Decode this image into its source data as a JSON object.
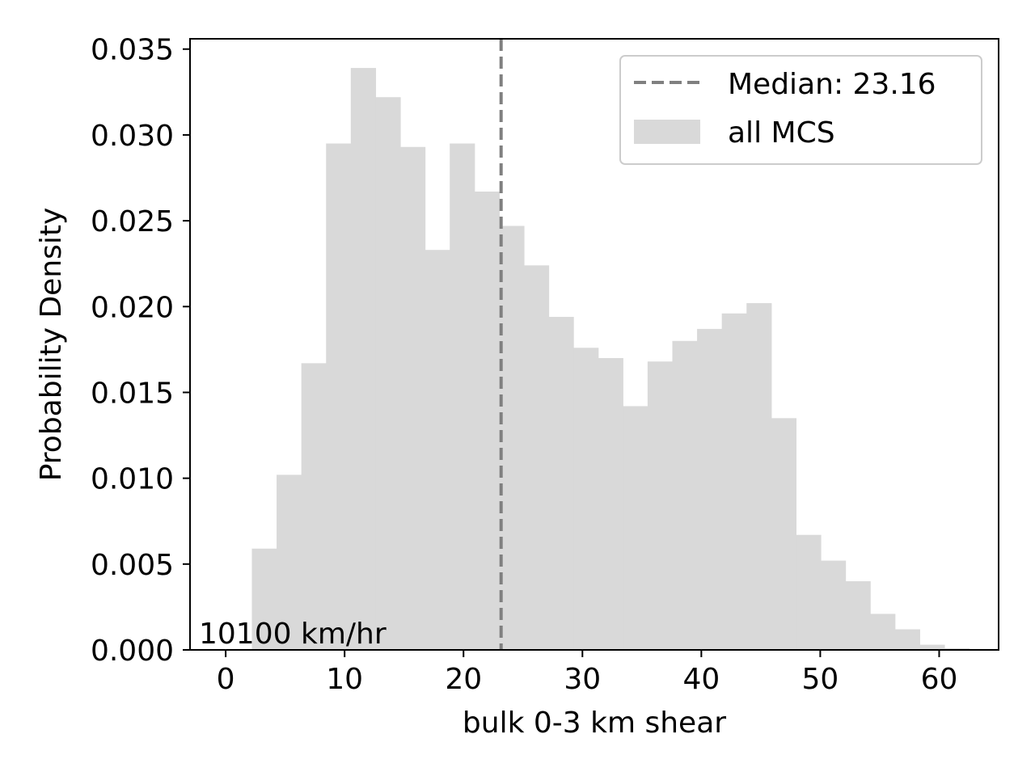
{
  "chart_data": {
    "type": "bar",
    "xlabel": "bulk 0-3 km shear",
    "ylabel": "Probability Density",
    "xlim": [
      -3,
      65
    ],
    "ylim": [
      0,
      0.0356
    ],
    "xticks": [
      0,
      10,
      20,
      30,
      40,
      50,
      60
    ],
    "xtick_labels": [
      "0",
      "10",
      "20",
      "30",
      "40",
      "50",
      "60"
    ],
    "yticks": [
      0,
      0.005,
      0.01,
      0.015,
      0.02,
      0.025,
      0.03,
      0.035
    ],
    "ytick_labels": [
      "0.000",
      "0.005",
      "0.010",
      "0.015",
      "0.020",
      "0.025",
      "0.030",
      "0.035"
    ],
    "bin_edges": [
      2.2,
      4.28,
      6.36,
      8.44,
      10.52,
      12.6,
      14.68,
      16.76,
      18.84,
      20.92,
      23.0,
      25.08,
      27.16,
      29.24,
      31.32,
      33.4,
      35.48,
      37.56,
      39.64,
      41.72,
      43.8,
      45.88,
      47.96,
      50.04,
      52.12,
      54.2,
      56.28,
      58.36,
      60.44,
      62.52
    ],
    "series": [
      {
        "name": "all MCS",
        "color": "#d9d9d9",
        "values": [
          0.0059,
          0.0102,
          0.0167,
          0.0295,
          0.0339,
          0.0322,
          0.0293,
          0.0233,
          0.0295,
          0.0267,
          0.0247,
          0.0224,
          0.0194,
          0.0176,
          0.017,
          0.0142,
          0.0168,
          0.018,
          0.0187,
          0.0196,
          0.0202,
          0.0135,
          0.0067,
          0.0052,
          0.004,
          0.0021,
          0.0012,
          0.0003,
          0.0001
        ]
      }
    ],
    "median": {
      "value": 23.16,
      "label": "Median: 23.16",
      "color": "#808080"
    },
    "legend": {
      "position": "top-right",
      "entries": [
        "Median: 23.16",
        "all MCS"
      ]
    },
    "annotation": "10100 km/hr",
    "grid": false
  }
}
